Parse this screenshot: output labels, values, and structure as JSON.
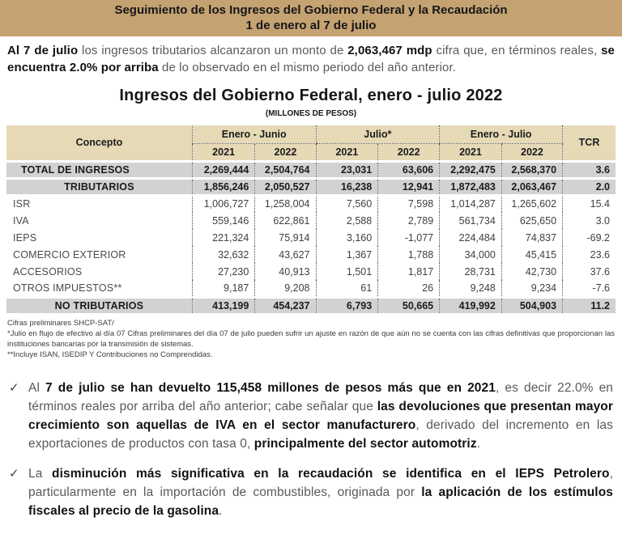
{
  "colors": {
    "header_bar_bg": "#c5a272",
    "table_header_bg": "#e5d9b6",
    "highlight_row_bg": "#d2d2d2",
    "text_dark": "#161616",
    "text_gray": "#595959"
  },
  "header": {
    "title_line1": "Seguimiento de los Ingresos del Gobierno Federal y la Recaudación",
    "title_line2": "1 de enero al 7 de julio"
  },
  "intro": {
    "segments": [
      {
        "t": "Al 7 de julio",
        "b": true
      },
      {
        "t": " los ingresos tributarios alcanzaron un monto de ",
        "b": false
      },
      {
        "t": "2,063,467 mdp",
        "b": true
      },
      {
        "t": " cifra que, en términos reales, ",
        "b": false
      },
      {
        "t": "se encuentra 2.0% por arriba",
        "b": true
      },
      {
        "t": " de lo observado en el mismo periodo del año anterior.",
        "b": false
      }
    ]
  },
  "section": {
    "title": "Ingresos del Gobierno Federal, enero - julio 2022",
    "subtitle": "(MILLONES DE PESOS)"
  },
  "table": {
    "concept_header": "Concepto",
    "groups": [
      "Enero - Junio",
      "Julio*",
      "Enero - Julio"
    ],
    "year_cols": [
      "2021",
      "2022",
      "2021",
      "2022",
      "2021",
      "2022"
    ],
    "tcr_header": "TCR",
    "rows": [
      {
        "label": "TOTAL DE INGRESOS",
        "style": "total",
        "values": [
          "2,269,444",
          "2,504,764",
          "23,031",
          "63,606",
          "2,292,475",
          "2,568,370",
          "3.6"
        ]
      },
      {
        "label": "TRIBUTARIOS",
        "style": "subtotal",
        "values": [
          "1,856,246",
          "2,050,527",
          "16,238",
          "12,941",
          "1,872,483",
          "2,063,467",
          "2.0"
        ]
      },
      {
        "label": "ISR",
        "style": "item",
        "values": [
          "1,006,727",
          "1,258,004",
          "7,560",
          "7,598",
          "1,014,287",
          "1,265,602",
          "15.4"
        ]
      },
      {
        "label": "IVA",
        "style": "item",
        "values": [
          "559,146",
          "622,861",
          "2,588",
          "2,789",
          "561,734",
          "625,650",
          "3.0"
        ]
      },
      {
        "label": "IEPS",
        "style": "item",
        "values": [
          "221,324",
          "75,914",
          "3,160",
          "-1,077",
          "224,484",
          "74,837",
          "-69.2"
        ]
      },
      {
        "label": "COMERCIO EXTERIOR",
        "style": "item",
        "values": [
          "32,632",
          "43,627",
          "1,367",
          "1,788",
          "34,000",
          "45,415",
          "23.6"
        ]
      },
      {
        "label": "ACCESORIOS",
        "style": "item",
        "values": [
          "27,230",
          "40,913",
          "1,501",
          "1,817",
          "28,731",
          "42,730",
          "37.6"
        ]
      },
      {
        "label": "OTROS IMPUESTOS**",
        "style": "item",
        "values": [
          "9,187",
          "9,208",
          "61",
          "26",
          "9,248",
          "9,234",
          "-7.6"
        ]
      },
      {
        "label": "NO TRIBUTARIOS",
        "style": "subtotal",
        "values": [
          "413,199",
          "454,237",
          "6,793",
          "50,665",
          "419,992",
          "504,903",
          "11.2"
        ]
      }
    ]
  },
  "footnotes": {
    "line1": "Cifras preliminares SHCP-SAT/",
    "line2": "*Julio en flujo de efectivo al día 07 Cifras preliminares del día 07 de julio pueden sufrir un ajuste en razón de que aún no se cuenta con las cifras definitivas que proporcionan las instituciones bancarias por la transmisión de sistemas.",
    "line3": "**Incluye ISAN, ISEDIP Y Contribuciones no Comprendidas."
  },
  "check_icon": "✓",
  "bullets": [
    {
      "segments": [
        {
          "t": "Al ",
          "b": false
        },
        {
          "t": "7 de julio se han devuelto 115,458 millones de pesos más que en 2021",
          "b": true
        },
        {
          "t": ", es decir 22.0% en términos reales por arriba del año anterior; cabe señalar que ",
          "b": false
        },
        {
          "t": "las devoluciones que presentan mayor crecimiento son aquellas de IVA en el sector manufacturero",
          "b": true
        },
        {
          "t": ", derivado del incremento en las exportaciones de productos con tasa 0, ",
          "b": false
        },
        {
          "t": "principalmente del sector automotriz",
          "b": true
        },
        {
          "t": ".",
          "b": false
        }
      ]
    },
    {
      "segments": [
        {
          "t": "La ",
          "b": false
        },
        {
          "t": "disminución más significativa en la recaudación se identifica en el IEPS Petrolero",
          "b": true
        },
        {
          "t": ", particularmente en la importación de combustibles, originada por ",
          "b": false
        },
        {
          "t": "la aplicación de los estímulos fiscales al precio de la gasolina",
          "b": true
        },
        {
          "t": ".",
          "b": false
        }
      ]
    }
  ]
}
